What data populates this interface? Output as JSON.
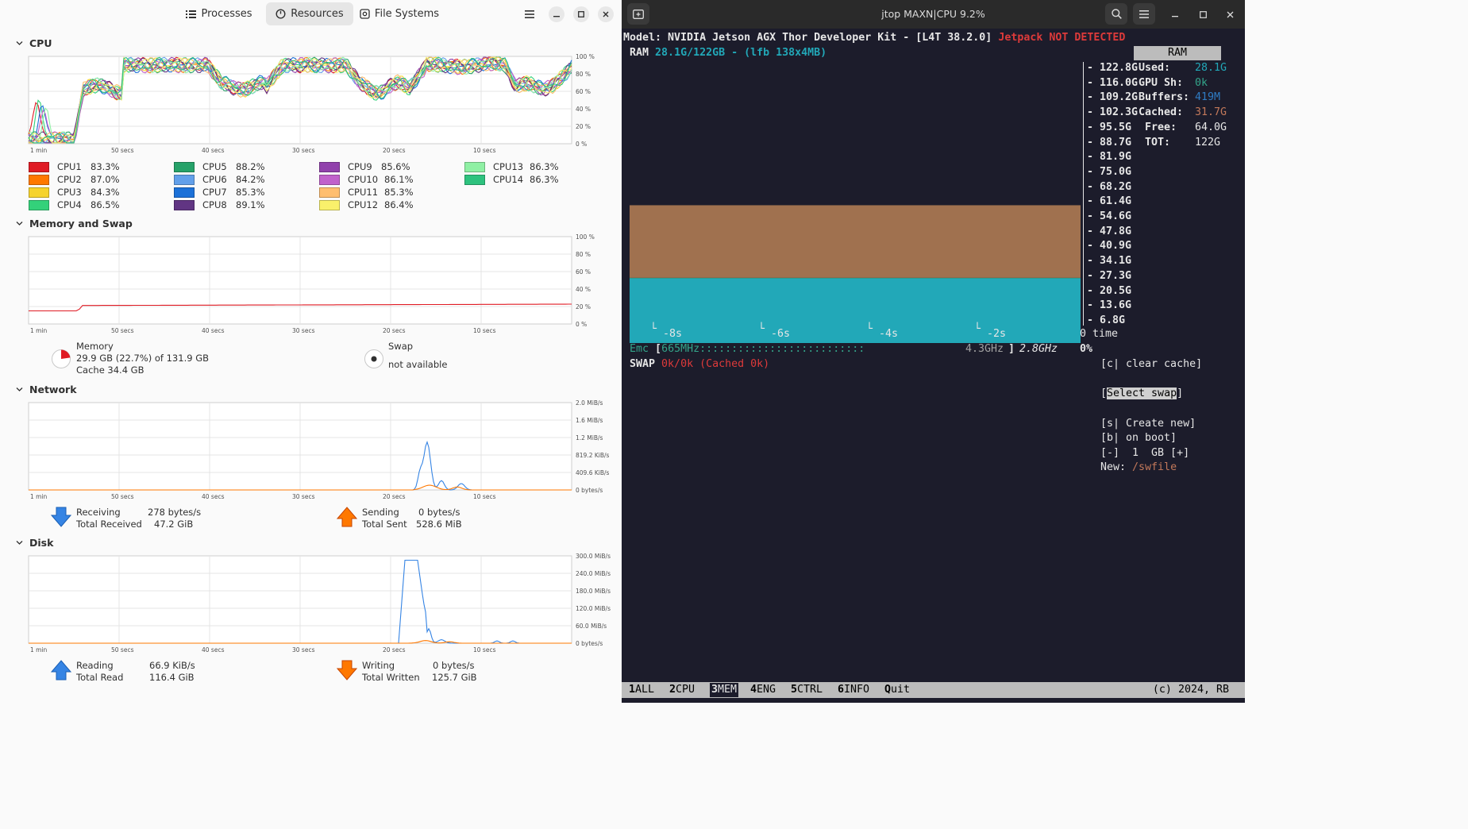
{
  "left": {
    "tabs": [
      {
        "label": "Processes",
        "active": false,
        "icon": "list-icon"
      },
      {
        "label": "Resources",
        "active": true,
        "icon": "gauge-icon"
      },
      {
        "label": "File Systems",
        "active": false,
        "icon": "disk-icon"
      }
    ],
    "time_ticks": [
      "1 min",
      "50 secs",
      "40 secs",
      "30 secs",
      "20 secs",
      "10 secs"
    ],
    "cpu": {
      "title": "CPU",
      "y_ticks": [
        "100 %",
        "80 %",
        "60 %",
        "40 %",
        "20 %",
        "0 %"
      ],
      "cores": [
        {
          "name": "CPU1",
          "value": "83.3%",
          "color": "#e01b24"
        },
        {
          "name": "CPU2",
          "value": "87.0%",
          "color": "#ff7800"
        },
        {
          "name": "CPU3",
          "value": "84.3%",
          "color": "#f6d32d"
        },
        {
          "name": "CPU4",
          "value": "86.5%",
          "color": "#33d17a"
        },
        {
          "name": "CPU5",
          "value": "88.2%",
          "color": "#26a269"
        },
        {
          "name": "CPU6",
          "value": "84.2%",
          "color": "#62a0ea"
        },
        {
          "name": "CPU7",
          "value": "85.3%",
          "color": "#1c71d8"
        },
        {
          "name": "CPU8",
          "value": "89.1%",
          "color": "#613583"
        },
        {
          "name": "CPU9",
          "value": "85.6%",
          "color": "#9141ac"
        },
        {
          "name": "CPU10",
          "value": "86.1%",
          "color": "#c061cb"
        },
        {
          "name": "CPU11",
          "value": "85.3%",
          "color": "#ffbe6f"
        },
        {
          "name": "CPU12",
          "value": "86.4%",
          "color": "#f9f06b"
        },
        {
          "name": "CPU13",
          "value": "86.3%",
          "color": "#8ff0a4"
        },
        {
          "name": "CPU14",
          "value": "86.3%",
          "color": "#2ec27e"
        }
      ]
    },
    "memory": {
      "title": "Memory and Swap",
      "y_ticks": [
        "100 %",
        "80 %",
        "60 %",
        "40 %",
        "20 %",
        "0 %"
      ],
      "memory_label": "Memory",
      "memory_value": "29.9 GB (22.7%) of 131.9 GB",
      "cache_value": "Cache 34.4 GB",
      "memory_fraction": 0.227,
      "swap_label": "Swap",
      "swap_value": "not available"
    },
    "network": {
      "title": "Network",
      "y_ticks": [
        "2.0 MiB/s",
        "1.6 MiB/s",
        "1.2 MiB/s",
        "819.2 KiB/s",
        "409.6 KiB/s",
        "0 bytes/s"
      ],
      "receiving_label": "Receiving",
      "receiving_value": "278 bytes/s",
      "total_received_label": "Total Received",
      "total_received_value": "47.2 GiB",
      "sending_label": "Sending",
      "sending_value": "0 bytes/s",
      "total_sent_label": "Total Sent",
      "total_sent_value": "528.6 MiB"
    },
    "disk": {
      "title": "Disk",
      "y_ticks": [
        "300.0 MiB/s",
        "240.0 MiB/s",
        "180.0 MiB/s",
        "120.0 MiB/s",
        "60.0 MiB/s",
        "0 bytes/s"
      ],
      "reading_label": "Reading",
      "reading_value": "66.9 KiB/s",
      "total_read_label": "Total Read",
      "total_read_value": "116.4 GiB",
      "writing_label": "Writing",
      "writing_value": "0 bytes/s",
      "total_written_label": "Total Written",
      "total_written_value": "125.7 GiB"
    }
  },
  "right": {
    "title": "jtop MAXN|CPU 9.2%",
    "model_prefix": "Model: NVIDIA Jetson AGX Thor Developer Kit - [L4T 38.2.0] ",
    "jetpack_text": "Jetpack NOT DETECTED",
    "ram_label": "RAM",
    "ram_value": "28.1G/122GB - (lfb 138x4MB)",
    "ram_header": "RAM",
    "y_labels": [
      "122.8G",
      "116.0G",
      "109.2G",
      "102.3G",
      "95.5G",
      "88.7G",
      "81.9G",
      "75.0G",
      "68.2G",
      "61.4G",
      "54.6G",
      "47.8G",
      "40.9G",
      "34.1G",
      "27.3G",
      "20.5G",
      "13.6G",
      "6.8G"
    ],
    "stats": [
      {
        "label": "Used:",
        "value": "28.1G",
        "color": "#22a8b8"
      },
      {
        "label": "GPU Sh:",
        "value": "0k",
        "color": "#33a58a"
      },
      {
        "label": "Buffers:",
        "value": "419M",
        "color": "#2f7cc4"
      },
      {
        "label": "Cached:",
        "value": "31.7G",
        "color": "#c2785a"
      },
      {
        "label": " Free:",
        "value": "64.0G",
        "color": "#e6e6e6"
      },
      {
        "label": " TOT:",
        "value": "122G",
        "color": "#e6e6e6"
      }
    ],
    "time_labels": [
      "-8s",
      "-6s",
      "-4s",
      "-2s"
    ],
    "time_zero": "0",
    "time_word": "time",
    "emc_label": "Emc",
    "emc_min": "665MHz",
    "emc_dots": "::::::::::::::::::::::::::",
    "emc_max": "4.3GHz",
    "emc_cur": "2.8GHz",
    "emc_pct": "0%",
    "swap_label": "SWAP",
    "swap_value": "0k/0k (Cached 0k)",
    "menu": {
      "clear_cache": "[c| clear cache]",
      "select_swap": "Select swap",
      "create_new": "[s| Create new]",
      "on_boot": "[b| on boot]",
      "size_line": "[-]  1  GB [+]",
      "new_label": "New: ",
      "new_value": "/swfile"
    },
    "tabs": [
      {
        "key": "1",
        "label": "ALL"
      },
      {
        "key": "2",
        "label": "CPU"
      },
      {
        "key": "3",
        "label": "MEM"
      },
      {
        "key": "4",
        "label": "ENG"
      },
      {
        "key": "5",
        "label": "CTRL"
      },
      {
        "key": "6",
        "label": "INFO"
      },
      {
        "key": "Q",
        "label": "uit"
      }
    ],
    "copyright": "(c) 2024, RB",
    "chart_data": {
      "type": "area",
      "x": [
        "-8s",
        "-6s",
        "-4s",
        "-2s",
        "0"
      ],
      "series": [
        {
          "name": "Used",
          "values": [
            28.1,
            28.1,
            28.1,
            28.1,
            28.1
          ],
          "color": "#22a8b8"
        },
        {
          "name": "Buffers",
          "values": [
            0.4,
            0.4,
            0.4,
            0.4,
            0.4
          ],
          "color": "#2a9d8f"
        },
        {
          "name": "Cached",
          "values": [
            31.7,
            31.7,
            31.7,
            31.7,
            31.7
          ],
          "color": "#a0714f"
        }
      ],
      "ylim": [
        0,
        122.8
      ]
    }
  }
}
